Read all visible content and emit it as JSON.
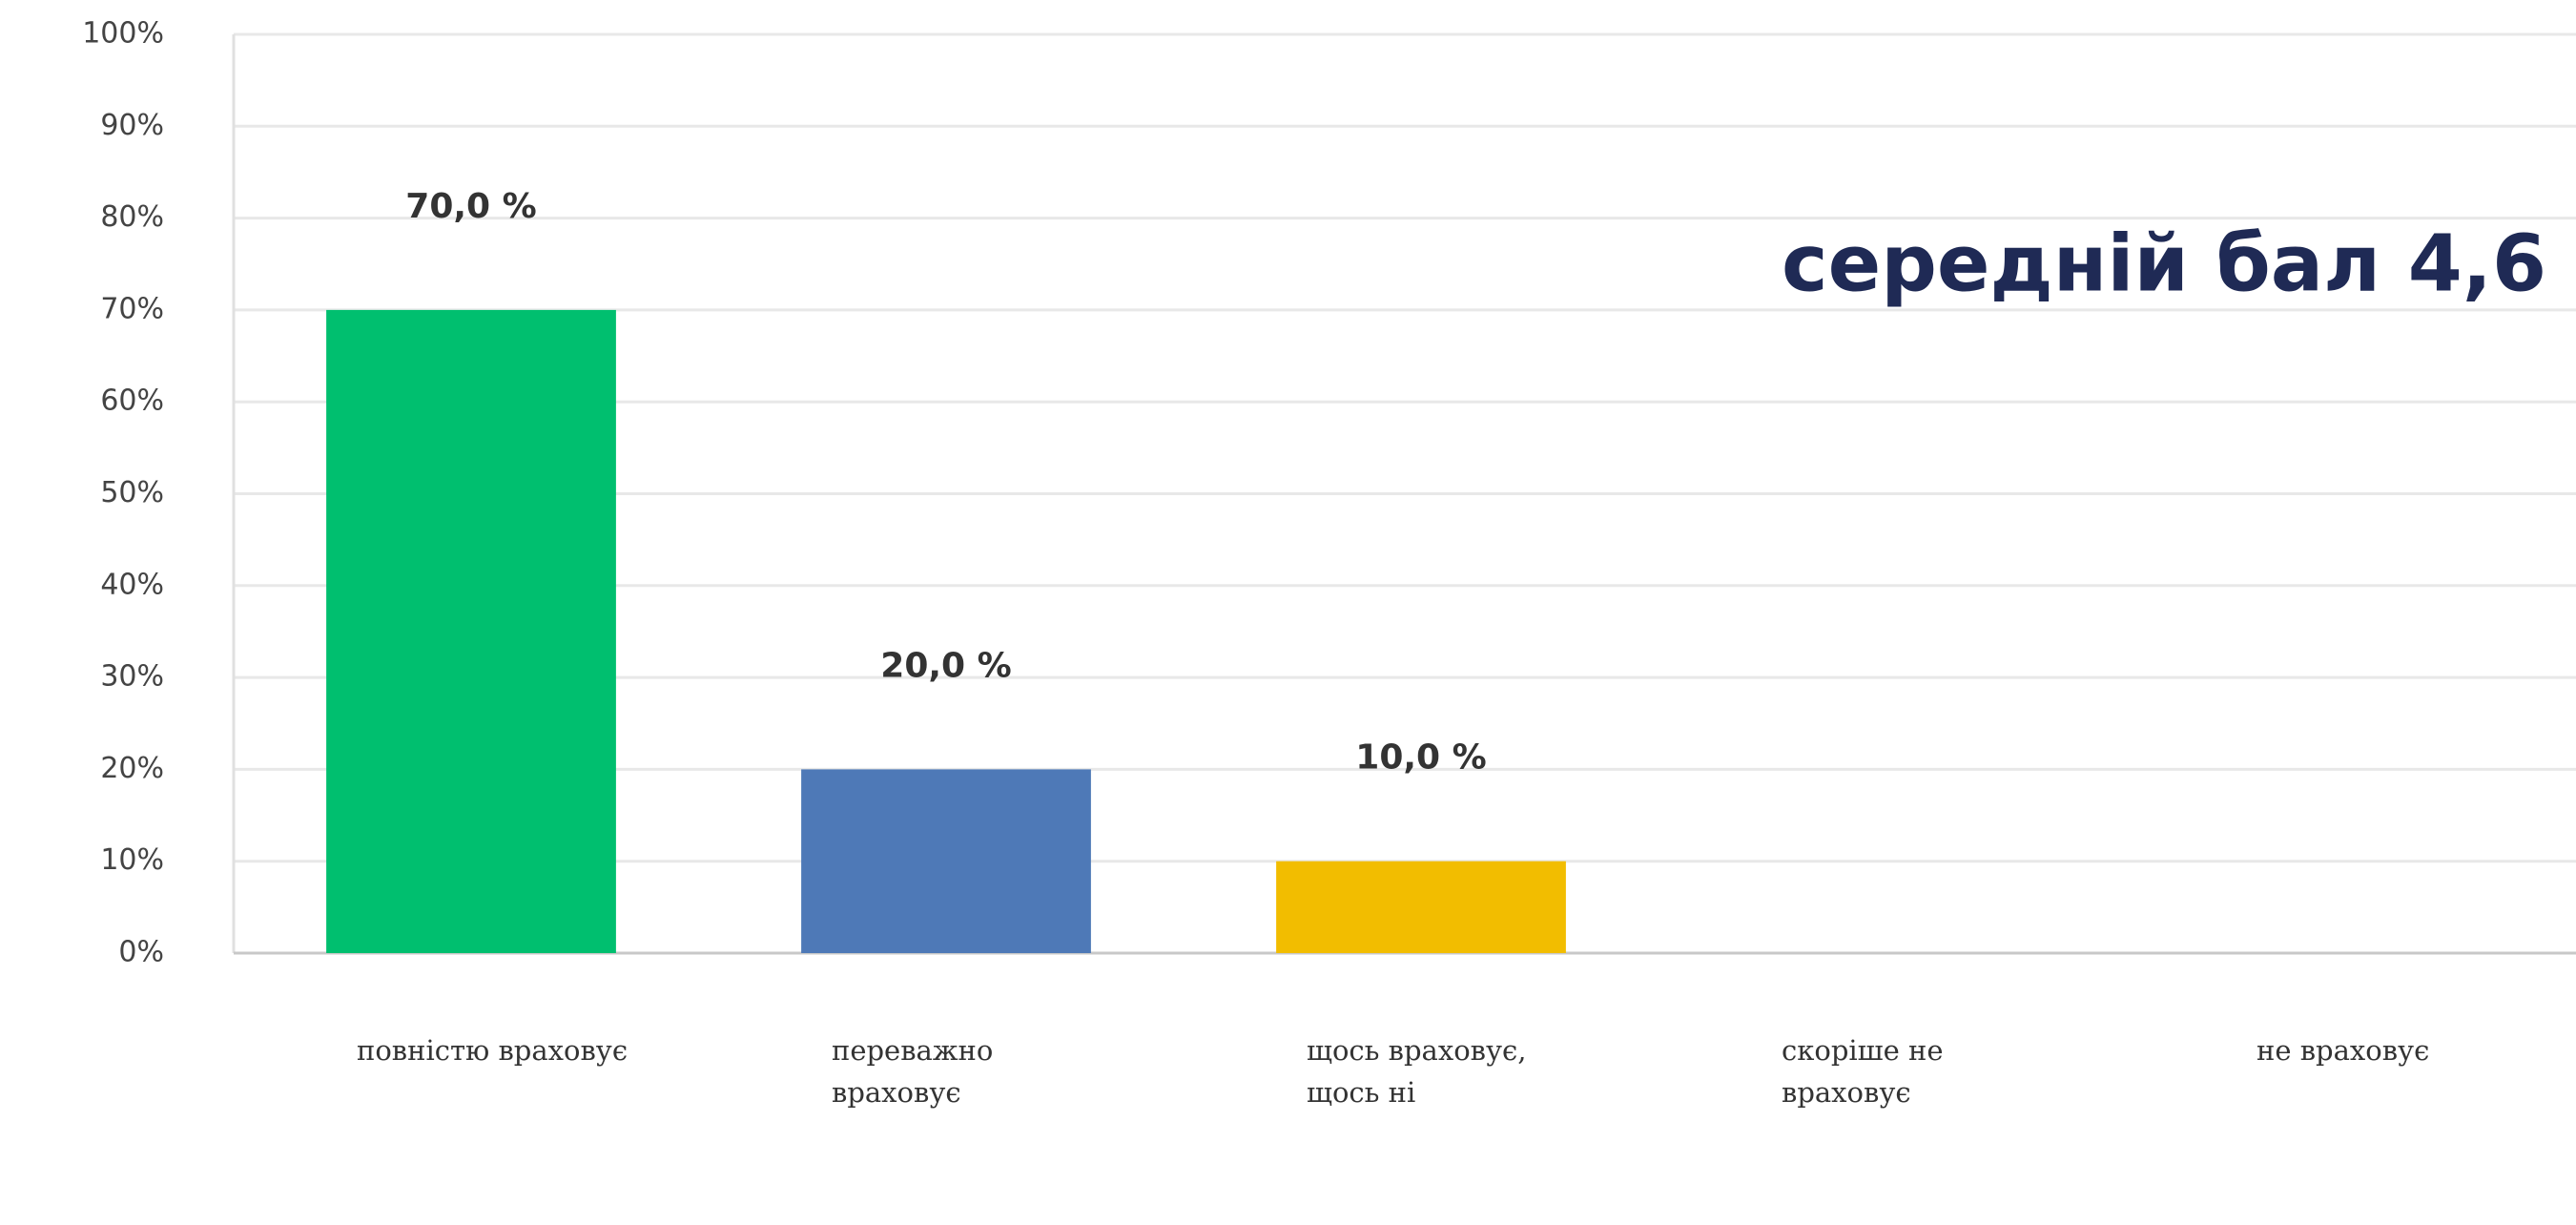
{
  "chart_data": {
    "type": "bar",
    "categories": [
      "повністю враховує",
      "переважно враховує",
      "щось враховує, щось ні",
      "скоріше не враховує",
      "не враховує"
    ],
    "values": [
      70,
      20,
      10,
      0,
      0
    ],
    "value_labels": [
      "70,0 %",
      "20,0 %",
      "10,0 %",
      null,
      null
    ],
    "colors": [
      "#00bf6f",
      "#4e79b7",
      "#f2bd00",
      "#a5a5a5",
      "#ed7d31"
    ],
    "annotation": "середній бал 4,6",
    "ylim": [
      0,
      100
    ],
    "yticks": [
      {
        "value": 0,
        "label": "0%"
      },
      {
        "value": 10,
        "label": "10%"
      },
      {
        "value": 20,
        "label": "20%"
      },
      {
        "value": 30,
        "label": "30%"
      },
      {
        "value": 40,
        "label": "40%"
      },
      {
        "value": 50,
        "label": "50%"
      },
      {
        "value": 60,
        "label": "60%"
      },
      {
        "value": 70,
        "label": "70%"
      },
      {
        "value": 80,
        "label": "80%"
      },
      {
        "value": 90,
        "label": "90%"
      },
      {
        "value": 100,
        "label": "100%"
      }
    ],
    "grid": true
  }
}
